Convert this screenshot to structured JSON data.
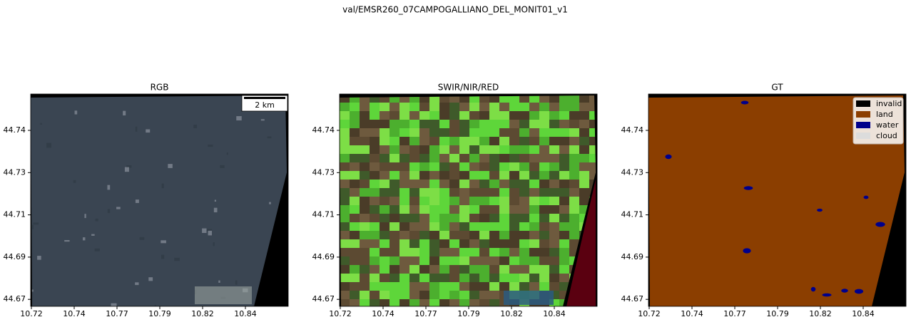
{
  "title": "val/EMSR260_07CAMPOGALLIANO_DEL_MONIT01_v1",
  "panels": [
    {
      "title": "RGB",
      "xticks": [
        10.72,
        10.74,
        10.77,
        10.79,
        10.82,
        10.84
      ],
      "yticks": [
        44.74,
        44.73,
        44.71,
        44.69,
        44.67
      ]
    },
    {
      "title": "SWIR/NIR/RED",
      "xticks": [
        10.72,
        10.74,
        10.77,
        10.79,
        10.82,
        10.84
      ],
      "yticks": [
        44.74,
        44.73,
        44.71,
        44.69,
        44.67
      ]
    },
    {
      "title": "GT",
      "xticks": [
        10.72,
        10.74,
        10.77,
        10.79,
        10.82,
        10.84
      ],
      "yticks": [
        44.74,
        44.73,
        44.71,
        44.69,
        44.67
      ]
    }
  ],
  "scale_bar": "2 km",
  "legend": [
    {
      "label": "invalid",
      "color": "#000000"
    },
    {
      "label": "land",
      "color": "#8b3e00"
    },
    {
      "label": "water",
      "color": "#00008b"
    },
    {
      "label": "cloud",
      "color": "#dcdcdc"
    }
  ]
}
